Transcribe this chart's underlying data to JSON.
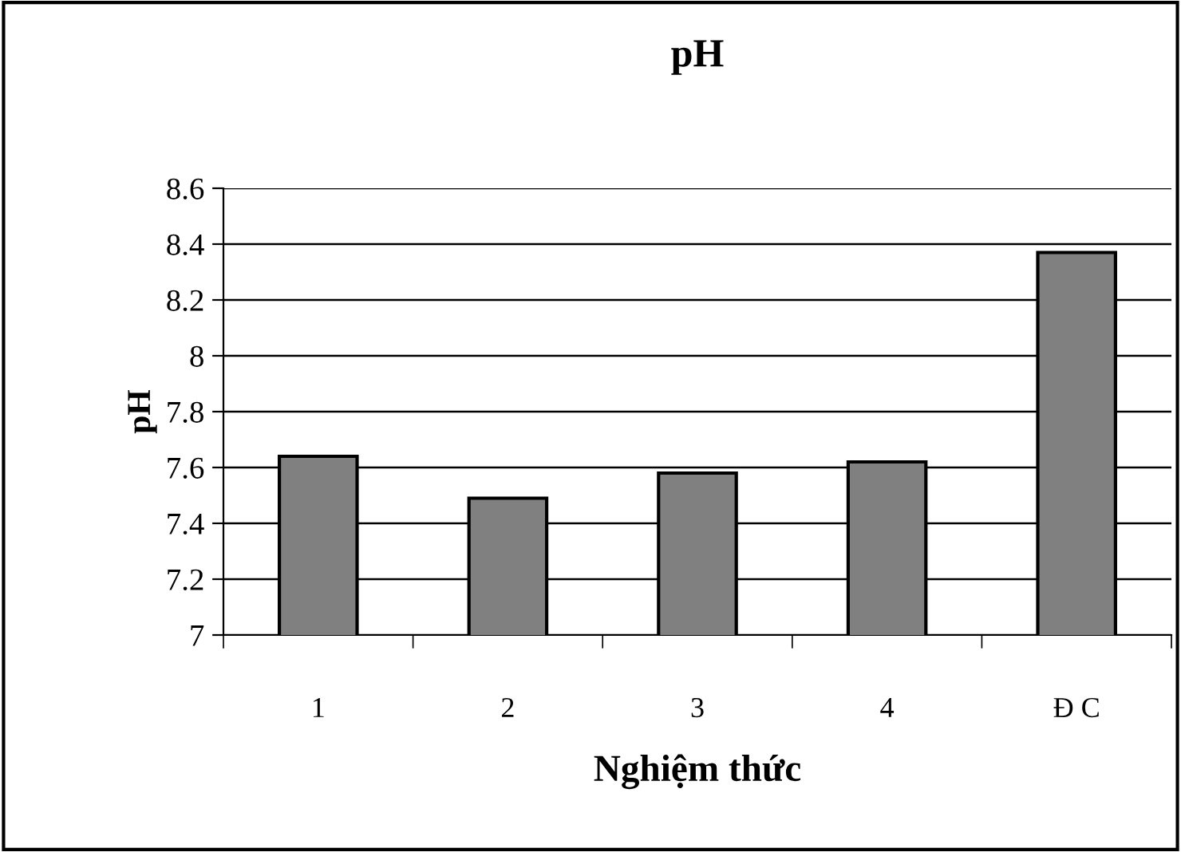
{
  "chart_data": {
    "type": "bar",
    "title": "pH",
    "xlabel": "Nghiệm thức",
    "ylabel": "pH",
    "categories": [
      "1",
      "2",
      "3",
      "4",
      "Đ C"
    ],
    "values": [
      7.64,
      7.49,
      7.58,
      7.62,
      8.37
    ],
    "color": "#808080",
    "ylim": [
      7,
      8.6
    ],
    "yticks": [
      7,
      7.2,
      7.4,
      7.6,
      7.8,
      8,
      8.2,
      8.4,
      8.6
    ],
    "grid": "y"
  }
}
